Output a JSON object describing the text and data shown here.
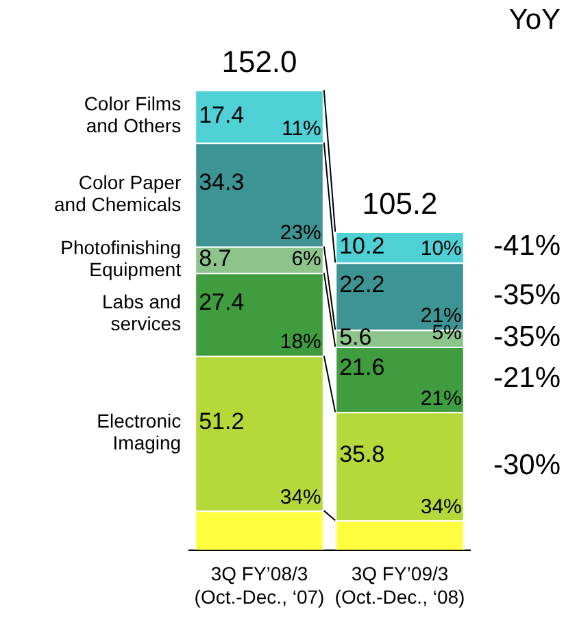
{
  "chart_data": {
    "type": "bar",
    "stacked": true,
    "legend": false,
    "grid": false,
    "tick_labels": "x",
    "categories": [
      "3Q FY’08/3\n(Oct.-Dec., ‘07)",
      "3Q FY’09/3\n(Oct.-Dec., ‘08)"
    ],
    "series": [
      {
        "color": "#ffff40",
        "values": [
          13.0,
          9.8
        ],
        "value_labels": [
          null,
          null
        ]
      },
      {
        "name": "Electronic\nImaging",
        "color": "#b5d83a",
        "values": [
          51.2,
          35.8
        ],
        "value_labels": [
          "51.2",
          "35.8"
        ]
      },
      {
        "name": "Labs and\nservices",
        "color": "#3f9c3f",
        "values": [
          27.4,
          21.6
        ],
        "value_labels": [
          "27.4",
          "21.6"
        ]
      },
      {
        "name": "Photofinishing\nEquipment",
        "color": "#8cc48c",
        "values": [
          8.7,
          5.6
        ],
        "value_labels": [
          "8.7",
          "5.6"
        ]
      },
      {
        "name": "Color Paper\nand Chemicals",
        "color": "#3e9494",
        "values": [
          34.3,
          22.2
        ],
        "value_labels": [
          "34.3",
          "22.2"
        ]
      },
      {
        "name": "Color Films\nand Others",
        "color": "#4fd0d4",
        "values": [
          17.4,
          10.2
        ],
        "value_labels": [
          "17.4",
          "10.2"
        ]
      }
    ],
    "totals": [
      "152.0",
      "105.2"
    ],
    "annotations": [
      "YoY",
      "-41%",
      "-35%",
      "-35%",
      "-21%",
      "-30%",
      {
        "text": "11%",
        "x": "3Q FY’08/3\n(Oct.-Dec., ‘07)",
        "y": 134.6
      },
      {
        "text": "23%",
        "x": "3Q FY’08/3\n(Oct.-Dec., ‘07)",
        "y": 100.3
      },
      {
        "text": "6%",
        "x": "3Q FY’08/3\n(Oct.-Dec., ‘07)",
        "y": 91.6
      },
      {
        "text": "18%",
        "x": "3Q FY’08/3\n(Oct.-Dec., ‘07)",
        "y": 64.2
      },
      {
        "text": "34%",
        "x": "3Q FY’08/3\n(Oct.-Dec., ‘07)",
        "y": 13.0
      },
      {
        "text": "10%",
        "x": "3Q FY’09/3\n(Oct.-Dec., ‘08)",
        "y": 95.0
      },
      {
        "text": "21%",
        "x": "3Q FY’09/3\n(Oct.-Dec., ‘08)",
        "y": 72.8
      },
      {
        "text": "5%",
        "x": "3Q FY’09/3\n(Oct.-Dec., ‘08)",
        "y": 67.2
      },
      {
        "text": "21%",
        "x": "3Q FY’09/3\n(Oct.-Dec., ‘08)",
        "y": 45.6
      },
      {
        "text": "34%",
        "x": "3Q FY’09/3\n(Oct.-Dec., ‘08)",
        "y": 9.8
      }
    ]
  }
}
